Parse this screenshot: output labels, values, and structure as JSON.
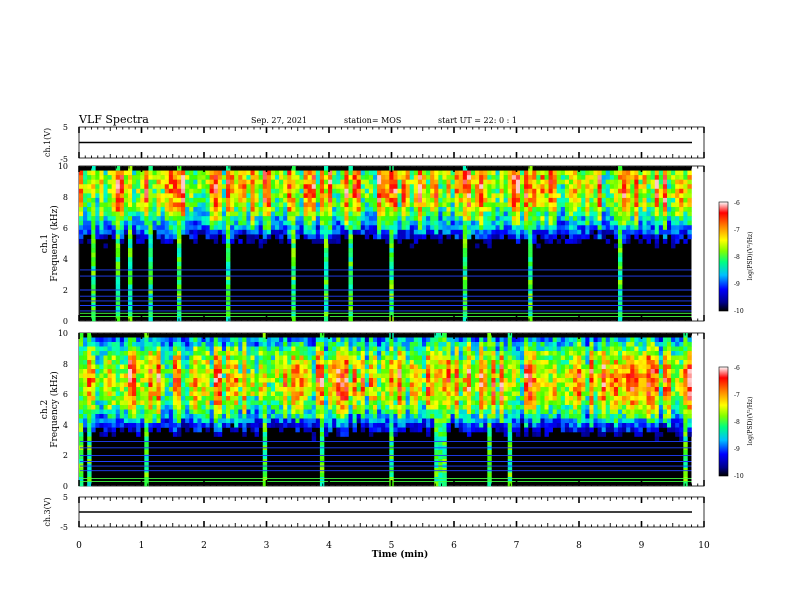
{
  "header": {
    "title": "VLF Spectra",
    "date": "Sep. 27, 2021",
    "station": "station= MOS",
    "start_ut": "start UT =  22: 0 : 1"
  },
  "colors": {
    "background": "#ffffff",
    "spectrogram_floor": "#000000",
    "colormap": [
      "#000000",
      "#00008b",
      "#0000ff",
      "#0080ff",
      "#00ffff",
      "#00ff80",
      "#40ff00",
      "#ffff00",
      "#ff8000",
      "#ff0000",
      "#ffffff"
    ]
  },
  "chart_data": [
    {
      "type": "line",
      "name": "ch1-waveform",
      "ylabel": "ch.1(V)",
      "ylim": [
        -5,
        5
      ],
      "y_ticks": [
        "5",
        "-5"
      ],
      "x": [
        0,
        9.8
      ],
      "y": [
        0,
        0
      ]
    },
    {
      "type": "heatmap",
      "name": "ch1-spectrogram",
      "ylabel_lines": [
        "ch.1",
        "Frequency (kHz)"
      ],
      "ylim": [
        0,
        10
      ],
      "y_ticks": [
        "0",
        "2",
        "4",
        "6",
        "8",
        "10"
      ],
      "xlim": [
        0,
        10
      ],
      "data_end_min": 9.8,
      "band_lower_edge_khz": 4.5,
      "band_peak_khz": 8.7,
      "noise_floor_lines_khz": [
        0.3,
        0.5,
        0.65,
        1.0,
        1.3,
        1.6,
        2.0,
        2.9,
        3.3
      ],
      "colorbar": {
        "label": "log(PSD)(V²/Hz)",
        "range": [
          -10,
          -6
        ],
        "ticks": [
          "-6",
          "-7",
          "-8",
          "-9",
          "-10"
        ]
      }
    },
    {
      "type": "heatmap",
      "name": "ch2-spectrogram",
      "ylabel_lines": [
        "ch.2",
        "Frequency (kHz)"
      ],
      "ylim": [
        0,
        10
      ],
      "y_ticks": [
        "0",
        "2",
        "4",
        "6",
        "8",
        "10"
      ],
      "xlim": [
        0,
        10
      ],
      "data_end_min": 9.8,
      "band_lower_edge_khz": 3.2,
      "band_peak_khz": 6.9,
      "noise_floor_lines_khz": [
        0.3,
        0.5,
        1.0,
        1.3,
        1.6,
        2.0,
        2.5,
        2.9
      ],
      "colorbar": {
        "label": "log(PSD)(V²/Hz)",
        "range": [
          -10,
          -6
        ],
        "ticks": [
          "-6",
          "-7",
          "-8",
          "-9",
          "-10"
        ]
      }
    },
    {
      "type": "line",
      "name": "ch3-waveform",
      "ylabel": "ch.3(V)",
      "ylim": [
        -5,
        5
      ],
      "y_ticks": [
        "5",
        "-5"
      ],
      "x": [
        0,
        9.8
      ],
      "y": [
        0,
        0
      ]
    }
  ],
  "x_axis": {
    "label": "Time (min)",
    "range": [
      0,
      10
    ],
    "ticks": [
      "0",
      "1",
      "2",
      "3",
      "4",
      "5",
      "6",
      "7",
      "8",
      "9",
      "10"
    ]
  }
}
